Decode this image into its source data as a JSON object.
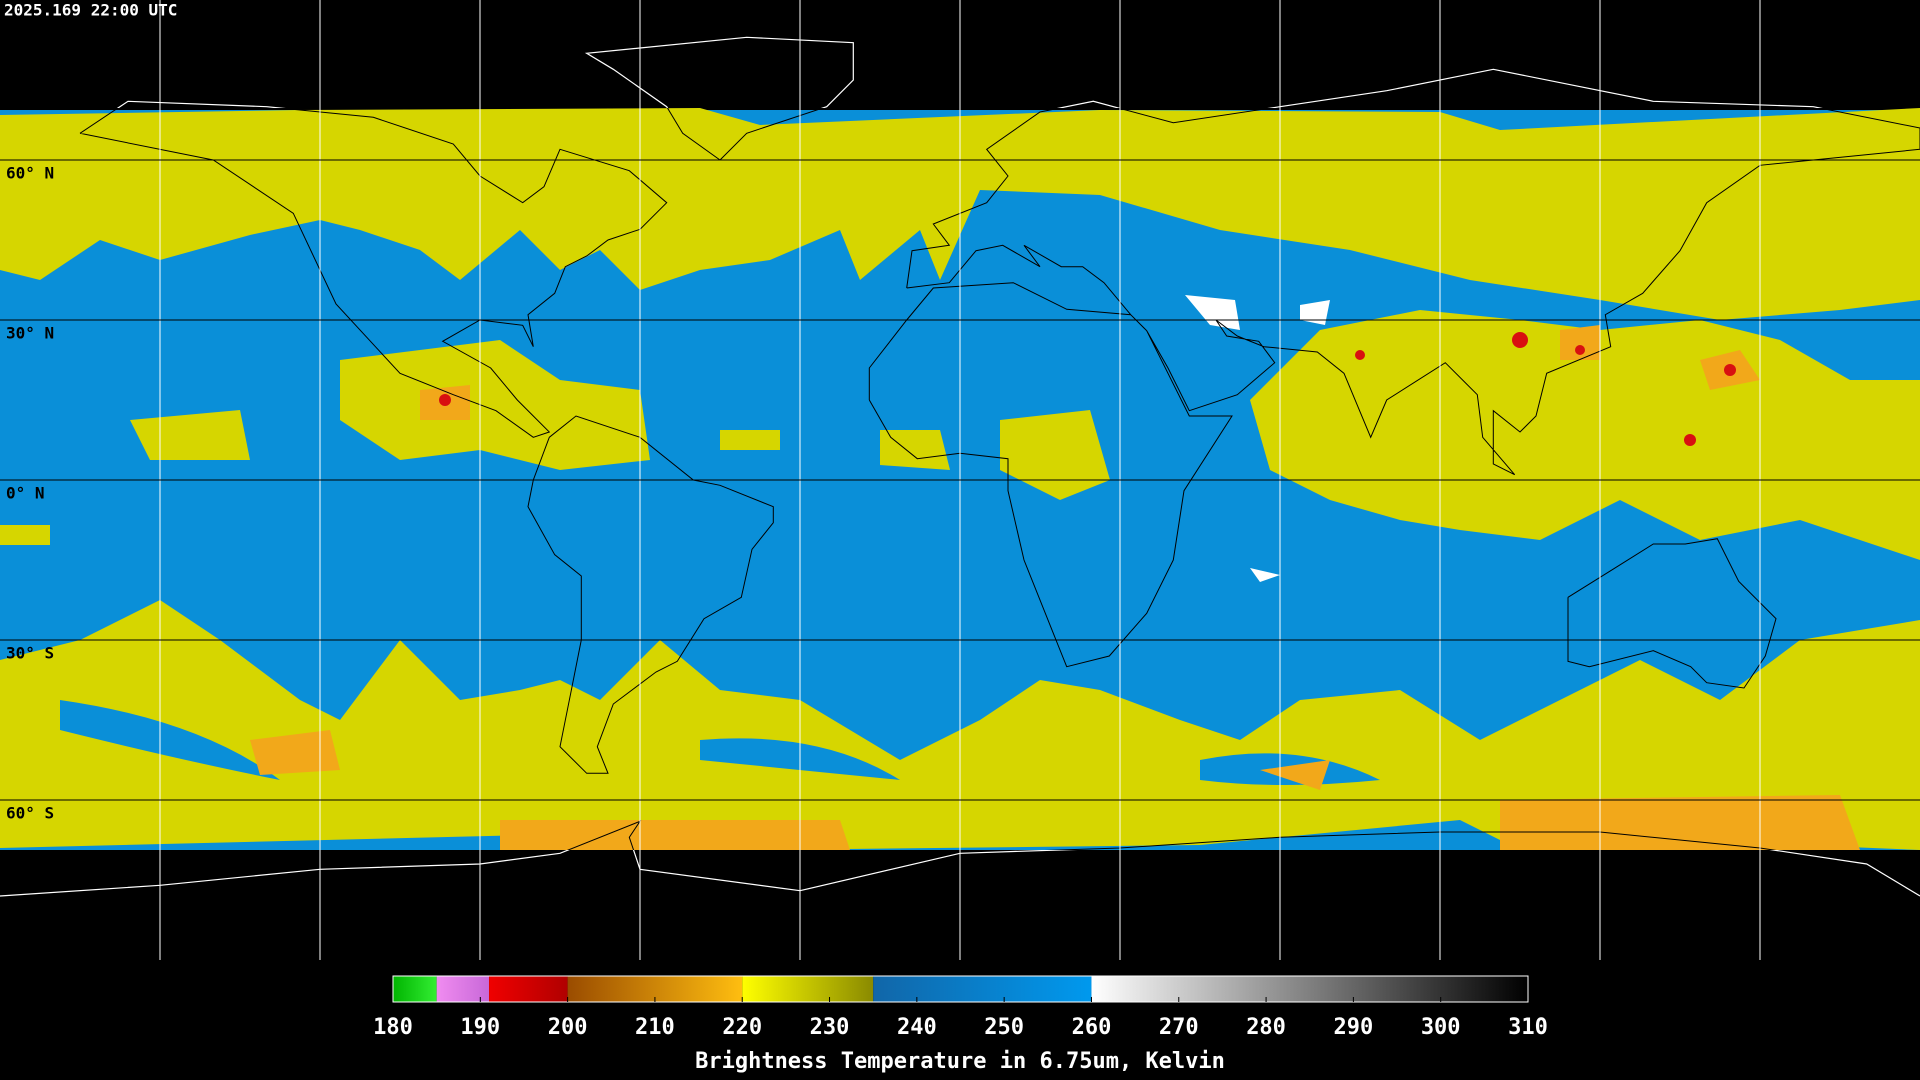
{
  "map": {
    "timestamp": "2025.169 22:00 UTC",
    "lat_labels": [
      {
        "value": 60,
        "label": "60° N"
      },
      {
        "value": 30,
        "label": "30° N"
      },
      {
        "value": 0,
        "label": "0° N"
      },
      {
        "value": -30,
        "label": "30° S"
      },
      {
        "value": -60,
        "label": "60° S"
      }
    ]
  },
  "colorbar": {
    "title": "Brightness Temperature in 6.75um, Kelvin",
    "range": [
      180,
      310
    ],
    "ticks": [
      180,
      190,
      200,
      210,
      220,
      230,
      240,
      250,
      260,
      270,
      280,
      290,
      300,
      310
    ],
    "segments": [
      {
        "from": 180,
        "to": 185,
        "colors": [
          "#00b400",
          "#33ee33"
        ]
      },
      {
        "from": 185,
        "to": 191,
        "colors": [
          "#f08cf0",
          "#c868d8"
        ]
      },
      {
        "from": 191,
        "to": 200,
        "colors": [
          "#f00000",
          "#b00000"
        ]
      },
      {
        "from": 200,
        "to": 220,
        "colors": [
          "#9a4c00",
          "#ffbe10"
        ]
      },
      {
        "from": 220,
        "to": 235,
        "colors": [
          "#ffff00",
          "#8a8a00"
        ]
      },
      {
        "from": 235,
        "to": 260,
        "colors": [
          "#1166a8",
          "#0099ee"
        ]
      },
      {
        "from": 260,
        "to": 310,
        "colors": [
          "#ffffff",
          "#000000"
        ]
      }
    ]
  }
}
